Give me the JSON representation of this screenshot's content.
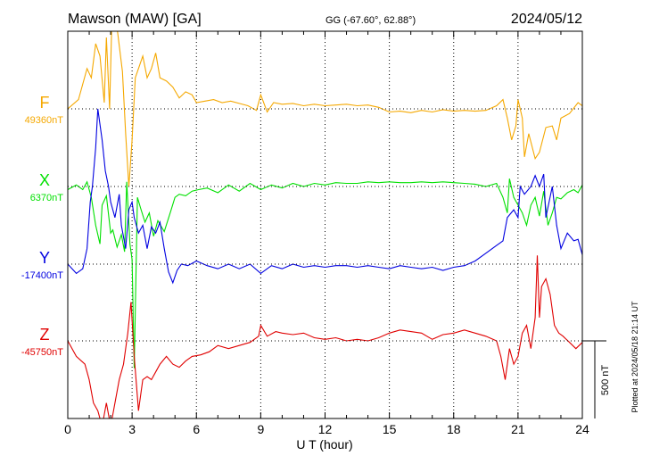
{
  "header": {
    "station": "Mawson (MAW)  [GA]",
    "coords": "GG (-67.60°,  62.88°)",
    "date": "2024/05/12"
  },
  "footer": {
    "plotted": "Plotted at 2024/05/18 21:14 UT",
    "scale": "500 nT"
  },
  "chart_data": {
    "type": "line",
    "xlabel": "U T (hour)",
    "xlim": [
      0,
      24
    ],
    "xticks": [
      "0",
      "3",
      "6",
      "9",
      "12",
      "15",
      "18",
      "21",
      "24"
    ],
    "scale_bar_nT": 500,
    "series": [
      {
        "name": "F",
        "baseline_label": "49360nT",
        "baseline": 49360,
        "color": "#f5a800",
        "points": [
          [
            0,
            49360
          ],
          [
            0.5,
            49420
          ],
          [
            0.9,
            49620
          ],
          [
            1.1,
            49560
          ],
          [
            1.3,
            49780
          ],
          [
            1.5,
            49700
          ],
          [
            1.7,
            49400
          ],
          [
            1.8,
            49820
          ],
          [
            1.95,
            49360
          ],
          [
            2.05,
            49900
          ],
          [
            2.3,
            49880
          ],
          [
            2.55,
            49600
          ],
          [
            2.7,
            49200
          ],
          [
            2.85,
            48860
          ],
          [
            3.0,
            49160
          ],
          [
            3.15,
            49560
          ],
          [
            3.3,
            49620
          ],
          [
            3.5,
            49700
          ],
          [
            3.7,
            49560
          ],
          [
            3.9,
            49620
          ],
          [
            4.1,
            49720
          ],
          [
            4.3,
            49560
          ],
          [
            4.6,
            49540
          ],
          [
            4.9,
            49500
          ],
          [
            5.2,
            49430
          ],
          [
            5.5,
            49470
          ],
          [
            5.8,
            49450
          ],
          [
            6.0,
            49400
          ],
          [
            6.4,
            49410
          ],
          [
            6.8,
            49420
          ],
          [
            7.2,
            49400
          ],
          [
            7.6,
            49410
          ],
          [
            8.0,
            49395
          ],
          [
            8.4,
            49380
          ],
          [
            8.8,
            49350
          ],
          [
            9.0,
            49450
          ],
          [
            9.3,
            49340
          ],
          [
            9.6,
            49400
          ],
          [
            10.0,
            49390
          ],
          [
            10.5,
            49395
          ],
          [
            11.0,
            49380
          ],
          [
            11.5,
            49390
          ],
          [
            12.0,
            49380
          ],
          [
            12.5,
            49385
          ],
          [
            13.0,
            49390
          ],
          [
            13.5,
            49380
          ],
          [
            14.0,
            49385
          ],
          [
            14.5,
            49370
          ],
          [
            15.0,
            49340
          ],
          [
            15.5,
            49345
          ],
          [
            16.0,
            49335
          ],
          [
            16.5,
            49350
          ],
          [
            17.0,
            49340
          ],
          [
            17.5,
            49355
          ],
          [
            18.0,
            49345
          ],
          [
            18.5,
            49350
          ],
          [
            19.0,
            49345
          ],
          [
            19.5,
            49350
          ],
          [
            20.0,
            49380
          ],
          [
            20.3,
            49420
          ],
          [
            20.5,
            49300
          ],
          [
            20.7,
            49160
          ],
          [
            20.9,
            49250
          ],
          [
            21.0,
            49420
          ],
          [
            21.2,
            49300
          ],
          [
            21.3,
            49050
          ],
          [
            21.5,
            49200
          ],
          [
            21.8,
            49040
          ],
          [
            22.0,
            49080
          ],
          [
            22.3,
            49240
          ],
          [
            22.6,
            49250
          ],
          [
            22.8,
            49160
          ],
          [
            23.0,
            49300
          ],
          [
            23.4,
            49330
          ],
          [
            23.8,
            49400
          ],
          [
            24,
            49380
          ]
        ]
      },
      {
        "name": "X",
        "baseline_label": "6370nT",
        "baseline": 6370,
        "color": "#00e000",
        "points": [
          [
            0,
            6350
          ],
          [
            0.4,
            6380
          ],
          [
            0.7,
            6350
          ],
          [
            0.9,
            6400
          ],
          [
            1.1,
            6300
          ],
          [
            1.3,
            6120
          ],
          [
            1.5,
            6000
          ],
          [
            1.6,
            6250
          ],
          [
            1.8,
            6310
          ],
          [
            2.0,
            6070
          ],
          [
            2.1,
            6090
          ],
          [
            2.3,
            5980
          ],
          [
            2.5,
            6060
          ],
          [
            2.65,
            5950
          ],
          [
            2.75,
            6400
          ],
          [
            2.9,
            6000
          ],
          [
            3.0,
            5900
          ],
          [
            3.1,
            5200
          ],
          [
            3.25,
            6300
          ],
          [
            3.4,
            6230
          ],
          [
            3.6,
            6140
          ],
          [
            3.8,
            6200
          ],
          [
            4.0,
            6050
          ],
          [
            4.2,
            6150
          ],
          [
            4.5,
            6080
          ],
          [
            4.8,
            6210
          ],
          [
            5.0,
            6300
          ],
          [
            5.2,
            6320
          ],
          [
            5.5,
            6310
          ],
          [
            5.8,
            6340
          ],
          [
            6.1,
            6350
          ],
          [
            6.5,
            6360
          ],
          [
            7.0,
            6330
          ],
          [
            7.5,
            6380
          ],
          [
            8.0,
            6340
          ],
          [
            8.5,
            6390
          ],
          [
            9.0,
            6350
          ],
          [
            9.5,
            6380
          ],
          [
            10.0,
            6360
          ],
          [
            10.5,
            6390
          ],
          [
            11.0,
            6370
          ],
          [
            11.5,
            6390
          ],
          [
            12.0,
            6380
          ],
          [
            12.5,
            6395
          ],
          [
            13.0,
            6390
          ],
          [
            13.5,
            6390
          ],
          [
            14.0,
            6400
          ],
          [
            14.5,
            6395
          ],
          [
            15.0,
            6400
          ],
          [
            15.5,
            6395
          ],
          [
            16.0,
            6395
          ],
          [
            16.5,
            6400
          ],
          [
            17.0,
            6395
          ],
          [
            17.5,
            6400
          ],
          [
            18.0,
            6395
          ],
          [
            18.5,
            6390
          ],
          [
            19.0,
            6385
          ],
          [
            19.5,
            6370
          ],
          [
            20.0,
            6390
          ],
          [
            20.3,
            6300
          ],
          [
            20.5,
            6200
          ],
          [
            20.6,
            6420
          ],
          [
            20.8,
            6300
          ],
          [
            21.0,
            6250
          ],
          [
            21.2,
            6200
          ],
          [
            21.4,
            6120
          ],
          [
            21.6,
            6250
          ],
          [
            21.8,
            6300
          ],
          [
            22.0,
            6180
          ],
          [
            22.2,
            6340
          ],
          [
            22.4,
            6120
          ],
          [
            22.6,
            6200
          ],
          [
            22.8,
            6300
          ],
          [
            23.0,
            6290
          ],
          [
            23.3,
            6330
          ],
          [
            23.6,
            6350
          ],
          [
            23.8,
            6330
          ],
          [
            24,
            6380
          ]
        ]
      },
      {
        "name": "Y",
        "baseline_label": "-17400nT",
        "baseline": -17400,
        "color": "#0000e0",
        "points": [
          [
            0,
            -17400
          ],
          [
            0.4,
            -17460
          ],
          [
            0.7,
            -17430
          ],
          [
            0.9,
            -17300
          ],
          [
            1.05,
            -17000
          ],
          [
            1.15,
            -16900
          ],
          [
            1.3,
            -16650
          ],
          [
            1.4,
            -16400
          ],
          [
            1.5,
            -16500
          ],
          [
            1.6,
            -16600
          ],
          [
            1.75,
            -16800
          ],
          [
            1.9,
            -16900
          ],
          [
            2.0,
            -17000
          ],
          [
            2.2,
            -17100
          ],
          [
            2.4,
            -16950
          ],
          [
            2.5,
            -17150
          ],
          [
            2.7,
            -17300
          ],
          [
            2.85,
            -17050
          ],
          [
            3.0,
            -17000
          ],
          [
            3.1,
            -17100
          ],
          [
            3.3,
            -17200
          ],
          [
            3.5,
            -17150
          ],
          [
            3.7,
            -17300
          ],
          [
            3.9,
            -17160
          ],
          [
            4.1,
            -17200
          ],
          [
            4.3,
            -17130
          ],
          [
            4.5,
            -17300
          ],
          [
            4.7,
            -17450
          ],
          [
            4.9,
            -17520
          ],
          [
            5.1,
            -17440
          ],
          [
            5.3,
            -17400
          ],
          [
            5.6,
            -17410
          ],
          [
            6.0,
            -17380
          ],
          [
            6.5,
            -17410
          ],
          [
            7.0,
            -17430
          ],
          [
            7.5,
            -17400
          ],
          [
            8.0,
            -17430
          ],
          [
            8.5,
            -17400
          ],
          [
            9.0,
            -17460
          ],
          [
            9.5,
            -17410
          ],
          [
            10.0,
            -17430
          ],
          [
            10.5,
            -17400
          ],
          [
            11.0,
            -17420
          ],
          [
            11.5,
            -17410
          ],
          [
            12.0,
            -17420
          ],
          [
            12.5,
            -17410
          ],
          [
            13.0,
            -17410
          ],
          [
            13.5,
            -17420
          ],
          [
            14.0,
            -17410
          ],
          [
            14.5,
            -17420
          ],
          [
            15.0,
            -17430
          ],
          [
            15.5,
            -17410
          ],
          [
            16.0,
            -17420
          ],
          [
            16.5,
            -17430
          ],
          [
            17.0,
            -17420
          ],
          [
            17.5,
            -17440
          ],
          [
            18.0,
            -17420
          ],
          [
            18.5,
            -17410
          ],
          [
            19.0,
            -17380
          ],
          [
            19.5,
            -17330
          ],
          [
            20.0,
            -17280
          ],
          [
            20.3,
            -17250
          ],
          [
            20.5,
            -17100
          ],
          [
            20.8,
            -17050
          ],
          [
            21.0,
            -17100
          ],
          [
            21.1,
            -16900
          ],
          [
            21.3,
            -16950
          ],
          [
            21.6,
            -16900
          ],
          [
            21.8,
            -16830
          ],
          [
            22.0,
            -16900
          ],
          [
            22.2,
            -16820
          ],
          [
            22.3,
            -17100
          ],
          [
            22.6,
            -16900
          ],
          [
            22.8,
            -17150
          ],
          [
            23.0,
            -17300
          ],
          [
            23.3,
            -17200
          ],
          [
            23.6,
            -17250
          ],
          [
            23.8,
            -17240
          ],
          [
            24,
            -17340
          ]
        ]
      },
      {
        "name": "Z",
        "baseline_label": "-45750nT",
        "baseline": -45750,
        "color": "#e00000",
        "points": [
          [
            0,
            -45750
          ],
          [
            0.4,
            -45850
          ],
          [
            0.8,
            -45900
          ],
          [
            1.0,
            -46000
          ],
          [
            1.2,
            -46150
          ],
          [
            1.4,
            -46200
          ],
          [
            1.6,
            -46300
          ],
          [
            1.8,
            -46150
          ],
          [
            2.0,
            -46300
          ],
          [
            2.2,
            -46150
          ],
          [
            2.4,
            -46000
          ],
          [
            2.6,
            -45900
          ],
          [
            2.8,
            -45700
          ],
          [
            2.95,
            -45500
          ],
          [
            3.1,
            -45850
          ],
          [
            3.3,
            -46200
          ],
          [
            3.5,
            -46000
          ],
          [
            3.7,
            -45980
          ],
          [
            3.9,
            -46000
          ],
          [
            4.1,
            -45950
          ],
          [
            4.3,
            -45900
          ],
          [
            4.6,
            -45850
          ],
          [
            4.9,
            -45900
          ],
          [
            5.2,
            -45920
          ],
          [
            5.5,
            -45880
          ],
          [
            5.8,
            -45850
          ],
          [
            6.2,
            -45840
          ],
          [
            6.6,
            -45820
          ],
          [
            7.0,
            -45780
          ],
          [
            7.5,
            -45800
          ],
          [
            8.0,
            -45780
          ],
          [
            8.5,
            -45760
          ],
          [
            8.9,
            -45720
          ],
          [
            9.0,
            -45650
          ],
          [
            9.3,
            -45720
          ],
          [
            9.7,
            -45690
          ],
          [
            10.0,
            -45700
          ],
          [
            10.5,
            -45710
          ],
          [
            11.0,
            -45700
          ],
          [
            11.5,
            -45730
          ],
          [
            12.0,
            -45740
          ],
          [
            12.5,
            -45730
          ],
          [
            13.0,
            -45750
          ],
          [
            13.5,
            -45740
          ],
          [
            14.0,
            -45750
          ],
          [
            14.5,
            -45730
          ],
          [
            15.0,
            -45700
          ],
          [
            15.5,
            -45680
          ],
          [
            16.0,
            -45690
          ],
          [
            16.5,
            -45700
          ],
          [
            17.0,
            -45740
          ],
          [
            17.5,
            -45710
          ],
          [
            18.0,
            -45700
          ],
          [
            18.5,
            -45680
          ],
          [
            19.0,
            -45700
          ],
          [
            19.5,
            -45720
          ],
          [
            20.0,
            -45750
          ],
          [
            20.2,
            -45850
          ],
          [
            20.4,
            -46000
          ],
          [
            20.6,
            -45800
          ],
          [
            20.8,
            -45900
          ],
          [
            21.0,
            -45850
          ],
          [
            21.2,
            -45700
          ],
          [
            21.4,
            -45650
          ],
          [
            21.6,
            -45800
          ],
          [
            21.8,
            -45600
          ],
          [
            21.9,
            -45200
          ],
          [
            22.0,
            -45600
          ],
          [
            22.1,
            -45400
          ],
          [
            22.3,
            -45350
          ],
          [
            22.5,
            -45450
          ],
          [
            22.7,
            -45650
          ],
          [
            22.9,
            -45700
          ],
          [
            23.1,
            -45720
          ],
          [
            23.4,
            -45760
          ],
          [
            23.7,
            -45800
          ],
          [
            24,
            -45760
          ]
        ]
      }
    ]
  }
}
